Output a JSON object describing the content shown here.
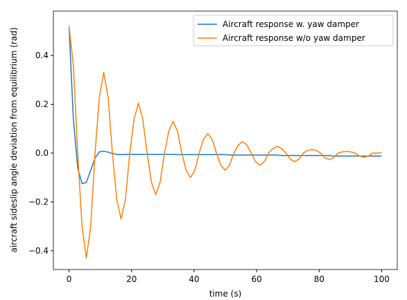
{
  "chart_data": {
    "type": "line",
    "xlabel": "time (s)",
    "ylabel": "aircraft sideslip angle deviation from equilibrium (rad)",
    "x": [
      0,
      1.39,
      2.78,
      4.16,
      5.55,
      6.94,
      8.33,
      9.71,
      11.1,
      12.49,
      13.88,
      15.26,
      16.65,
      18.04,
      19.43,
      20.81,
      22.2,
      23.59,
      24.98,
      26.36,
      27.75,
      29.14,
      30.53,
      31.91,
      33.3,
      34.69,
      36.08,
      37.46,
      38.85,
      40.24,
      41.63,
      43.01,
      44.4,
      45.79,
      47.18,
      48.56,
      49.95,
      51.34,
      52.73,
      54.11,
      55.5,
      56.89,
      58.28,
      59.66,
      61.05,
      62.44,
      63.83,
      65.21,
      66.6,
      67.99,
      69.38,
      70.76,
      72.15,
      73.54,
      74.93,
      76.31,
      77.7,
      79.09,
      80.48,
      81.86,
      83.25,
      84.64,
      86.03,
      87.41,
      88.8,
      90.19,
      91.58,
      92.96,
      94.35,
      95.74,
      97.13,
      98.51,
      100
    ],
    "series": [
      {
        "name": "Aircraft response w. yaw damper",
        "color": "#1f77b4",
        "values": [
          0.52,
          0.14,
          -0.06,
          -0.125,
          -0.12,
          -0.07,
          -0.02,
          0.005,
          0.008,
          0.004,
          -0.002,
          -0.005,
          -0.006,
          -0.005,
          -0.005,
          -0.005,
          -0.005,
          -0.005,
          -0.005,
          -0.005,
          -0.005,
          -0.005,
          -0.005,
          -0.005,
          -0.005,
          -0.006,
          -0.006,
          -0.006,
          -0.006,
          -0.006,
          -0.006,
          -0.006,
          -0.006,
          -0.006,
          -0.006,
          -0.006,
          -0.006,
          -0.008,
          -0.008,
          -0.008,
          -0.008,
          -0.008,
          -0.008,
          -0.008,
          -0.008,
          -0.008,
          -0.008,
          -0.008,
          -0.008,
          -0.01,
          -0.01,
          -0.01,
          -0.01,
          -0.01,
          -0.01,
          -0.01,
          -0.01,
          -0.01,
          -0.01,
          -0.01,
          -0.01,
          -0.012,
          -0.012,
          -0.012,
          -0.012,
          -0.012,
          -0.012,
          -0.012,
          -0.012,
          -0.012,
          -0.012,
          -0.012,
          -0.012
        ]
      },
      {
        "name": "Aircraft response w/o yaw damper",
        "color": "#ff7f0e",
        "values": [
          0.52,
          0.36,
          0,
          -0.3,
          -0.43,
          -0.3,
          0,
          0.23,
          0.33,
          0.23,
          0,
          -0.19,
          -0.27,
          -0.19,
          0,
          0.14,
          0.205,
          0.14,
          0,
          -0.12,
          -0.17,
          -0.12,
          0,
          0.09,
          0.13,
          0.09,
          0,
          -0.07,
          -0.1,
          -0.07,
          0,
          0.056,
          0.08,
          0.056,
          0,
          -0.05,
          -0.07,
          -0.05,
          0,
          0.033,
          0.047,
          0.033,
          0,
          -0.035,
          -0.05,
          -0.035,
          0,
          0.019,
          0.027,
          0.019,
          0,
          -0.025,
          -0.035,
          -0.025,
          0,
          0.011,
          0.015,
          0.011,
          0,
          -0.019,
          -0.027,
          -0.019,
          0,
          0.005,
          0.007,
          0.005,
          0,
          -0.012,
          -0.017,
          -0.012,
          0,
          0,
          0.002
        ]
      }
    ],
    "xlim": [
      -5,
      105
    ],
    "ylim": [
      -0.477,
      0.582
    ],
    "xticks": [
      0,
      20,
      40,
      60,
      80,
      100
    ],
    "yticks": [
      {
        "value": -0.4,
        "label": "−0.4"
      },
      {
        "value": -0.2,
        "label": "−0.2"
      },
      {
        "value": 0,
        "label": "0.0"
      },
      0.2,
      0.4
    ],
    "legend": "upper right"
  }
}
